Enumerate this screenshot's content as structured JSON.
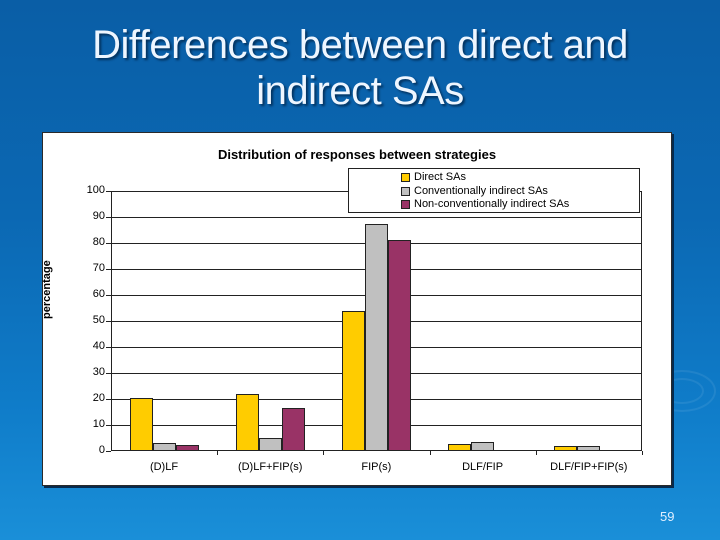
{
  "slide": {
    "title_line1": "Differences between direct and",
    "title_line2": "indirect SAs",
    "page_number": "59",
    "background_color": "#0b68b3"
  },
  "chart_data": {
    "type": "bar",
    "title": "Distribution of responses between strategies",
    "xlabel": "",
    "ylabel": "percentage",
    "ylim": [
      0,
      100
    ],
    "yticks": [
      "0",
      "10",
      "20",
      "30",
      "40",
      "50",
      "60",
      "70",
      "80",
      "90",
      "100"
    ],
    "grid": true,
    "legend_position": "top-right",
    "categories": [
      "(D)LF",
      "(D)LF+FIP(s)",
      "FIP(s)",
      "DLF/FIP",
      "DLF/FIP+FIP(s)"
    ],
    "series": [
      {
        "name": "Direct SAs",
        "color": "#ffcc00",
        "values": [
          20.3,
          22.0,
          54.0,
          2.6,
          1.8
        ]
      },
      {
        "name": "Conventionally indirect SAs",
        "color": "#c0c0c0",
        "values": [
          3.0,
          4.9,
          87.3,
          3.5,
          1.8
        ]
      },
      {
        "name": "Non-conventionally indirect SAs",
        "color": "#993366",
        "values": [
          2.2,
          16.7,
          81.2,
          0,
          0
        ]
      }
    ]
  }
}
